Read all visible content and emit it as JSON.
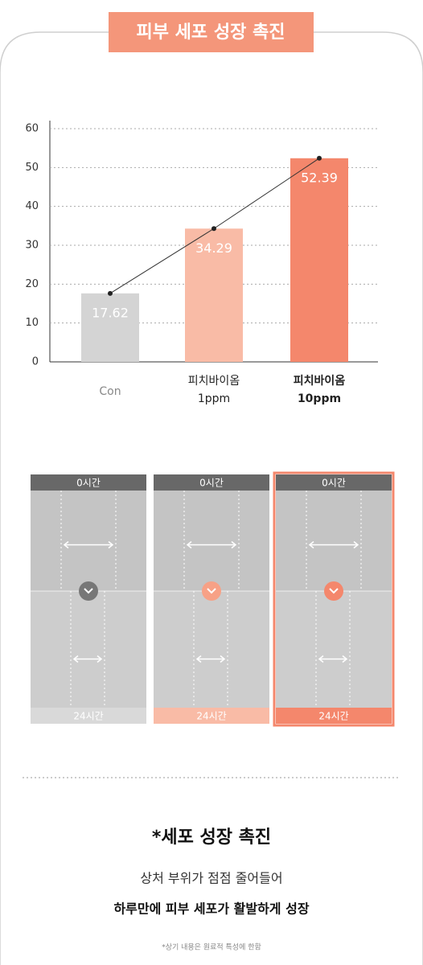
{
  "header": {
    "title": "피부 세포 성장 촉진"
  },
  "chart_data": {
    "type": "bar",
    "categories": [
      [
        "Con"
      ],
      [
        "피치바이옴",
        "1ppm"
      ],
      [
        "피치바이옴",
        "10ppm"
      ]
    ],
    "values": [
      17.62,
      34.29,
      52.39
    ],
    "colors": [
      "#d4d4d4",
      "#f9bba6",
      "#f4876c"
    ],
    "ylim": [
      0,
      60
    ],
    "yticks": [
      0,
      10,
      20,
      30,
      40,
      50,
      60
    ],
    "grid": true,
    "trend_line": true
  },
  "images": [
    {
      "top": "0시간",
      "bottom": "24시간"
    },
    {
      "top": "0시간",
      "bottom": "24시간"
    },
    {
      "top": "0시간",
      "bottom": "24시간"
    }
  ],
  "footer": {
    "heading": "*세포 성장 촉진",
    "line1": "상처 부위가 점점 줄어들어",
    "line2": "하루만에 피부 세포가 활발하게 성장",
    "note": "*상기 내용은 원료적 특성에 한함"
  }
}
